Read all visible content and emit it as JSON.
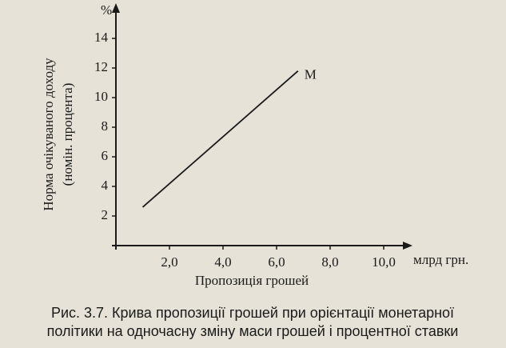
{
  "chart_data": {
    "type": "line",
    "y_axis_unit": "%",
    "x_axis_unit": "млрд грн.",
    "y_label": [
      "Норма очікуваного доходу",
      "(номін. процента)"
    ],
    "x_label": "Пропозиція грошей",
    "annotation": "M",
    "x": [
      1.0,
      6.8
    ],
    "series": [
      {
        "color": "#1a1a1a",
        "values": [
          2.6,
          11.8
        ]
      }
    ],
    "xlim": [
      0,
      11.5
    ],
    "ylim": [
      0,
      15.5
    ],
    "xticks": [
      {
        "value": 2,
        "label": "2,0"
      },
      {
        "value": 4,
        "label": "4,0"
      },
      {
        "value": 6,
        "label": "6,0"
      },
      {
        "value": 8,
        "label": "8,0"
      },
      {
        "value": 10,
        "label": "10,0"
      }
    ],
    "yticks": [
      2,
      4,
      6,
      8,
      10,
      12,
      14
    ],
    "caption": [
      "Рис. 3.7. Крива пропозиції грошей при орієнтації монетарної",
      "політики на одночасну зміну маси грошей і процентної ставки"
    ]
  }
}
